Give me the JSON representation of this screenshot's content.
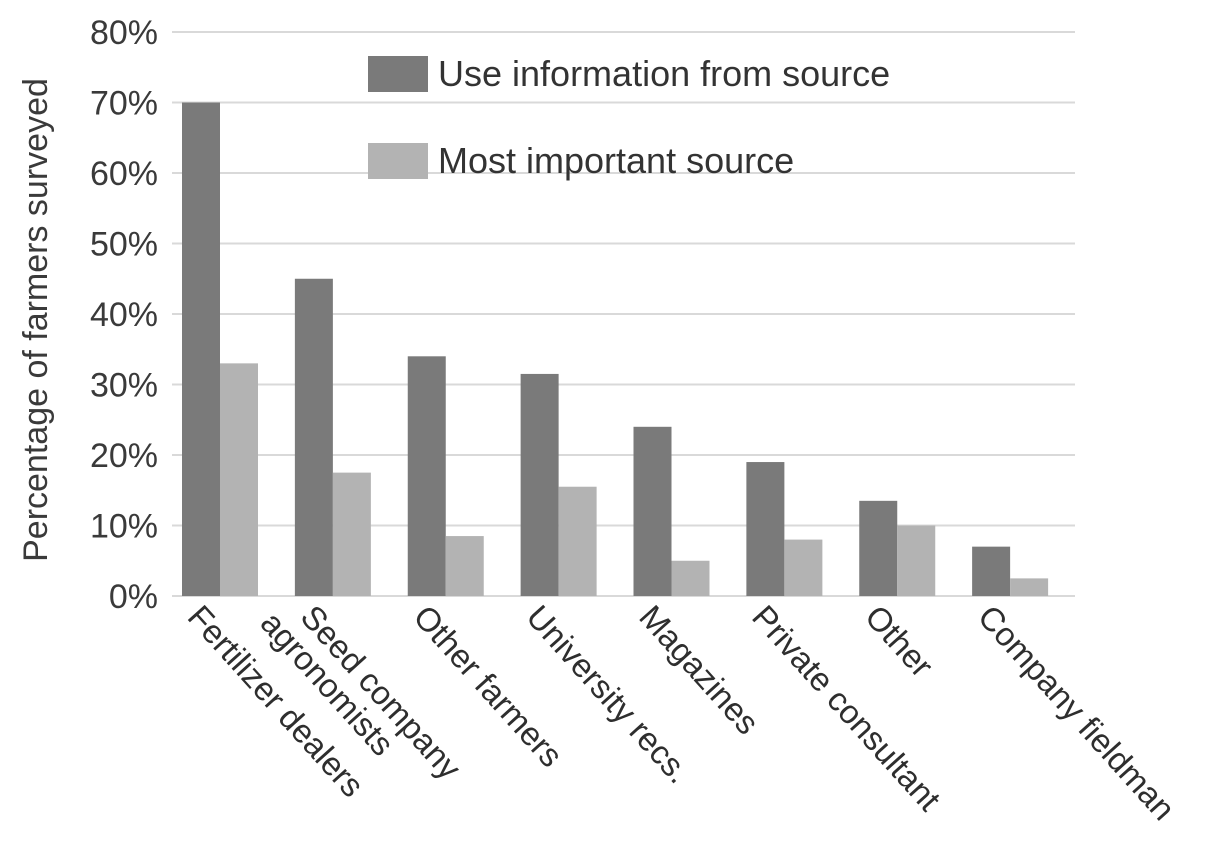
{
  "chart_data": {
    "type": "bar",
    "title": "",
    "xlabel": "",
    "ylabel": "Percentage of farmers surveyed",
    "ylim": [
      0,
      80
    ],
    "yticks": [
      0,
      10,
      20,
      30,
      40,
      50,
      60,
      70,
      80
    ],
    "ytick_suffix": "%",
    "grid": true,
    "legend_position": "top-right",
    "categories": [
      "Fertilizer dealers",
      "Seed company agronomists",
      "Other farmers",
      "University recs.",
      "Magazines",
      "Private consultant",
      "Other",
      "Company fieldman"
    ],
    "category_lines": [
      [
        "Fertilizer dealers"
      ],
      [
        "Seed company",
        "agronomists"
      ],
      [
        "Other farmers"
      ],
      [
        "University recs."
      ],
      [
        "Magazines"
      ],
      [
        "Private consultant"
      ],
      [
        "Other"
      ],
      [
        "Company fieldman"
      ]
    ],
    "series": [
      {
        "name": "Use information from source",
        "color": "#7a7a7a",
        "values": [
          70,
          45,
          34,
          31.5,
          24,
          19,
          13.5,
          7
        ]
      },
      {
        "name": "Most important source",
        "color": "#b3b3b3",
        "values": [
          33,
          17.5,
          8.5,
          15.5,
          5,
          8,
          10,
          2.5
        ]
      }
    ]
  }
}
